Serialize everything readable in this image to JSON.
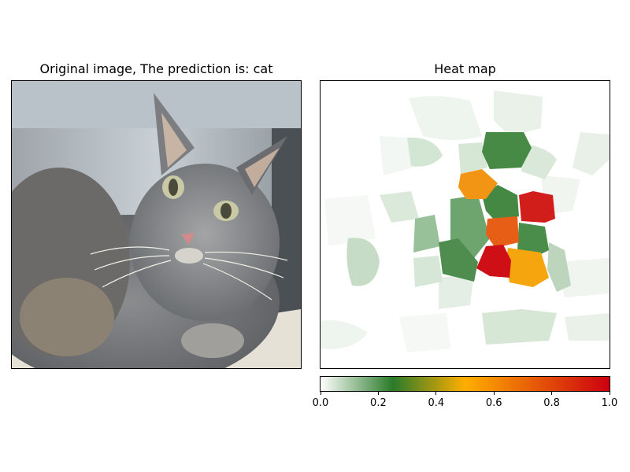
{
  "left_panel": {
    "title": "Original image, The prediction is: cat"
  },
  "right_panel": {
    "title": "Heat map"
  },
  "chart_data": {
    "type": "heatmap",
    "title": "Heat map",
    "colormap": [
      "#ffffff",
      "#2a7a2a",
      "#ffae00",
      "#cc0010"
    ],
    "colorbar": {
      "range": [
        0.0,
        1.0
      ],
      "ticks": [
        "0.0",
        "0.2",
        "0.4",
        "0.6",
        "0.8",
        "1.0"
      ],
      "tick_values": [
        0.0,
        0.2,
        0.4,
        0.6,
        0.8,
        1.0
      ]
    },
    "grid": false
  }
}
